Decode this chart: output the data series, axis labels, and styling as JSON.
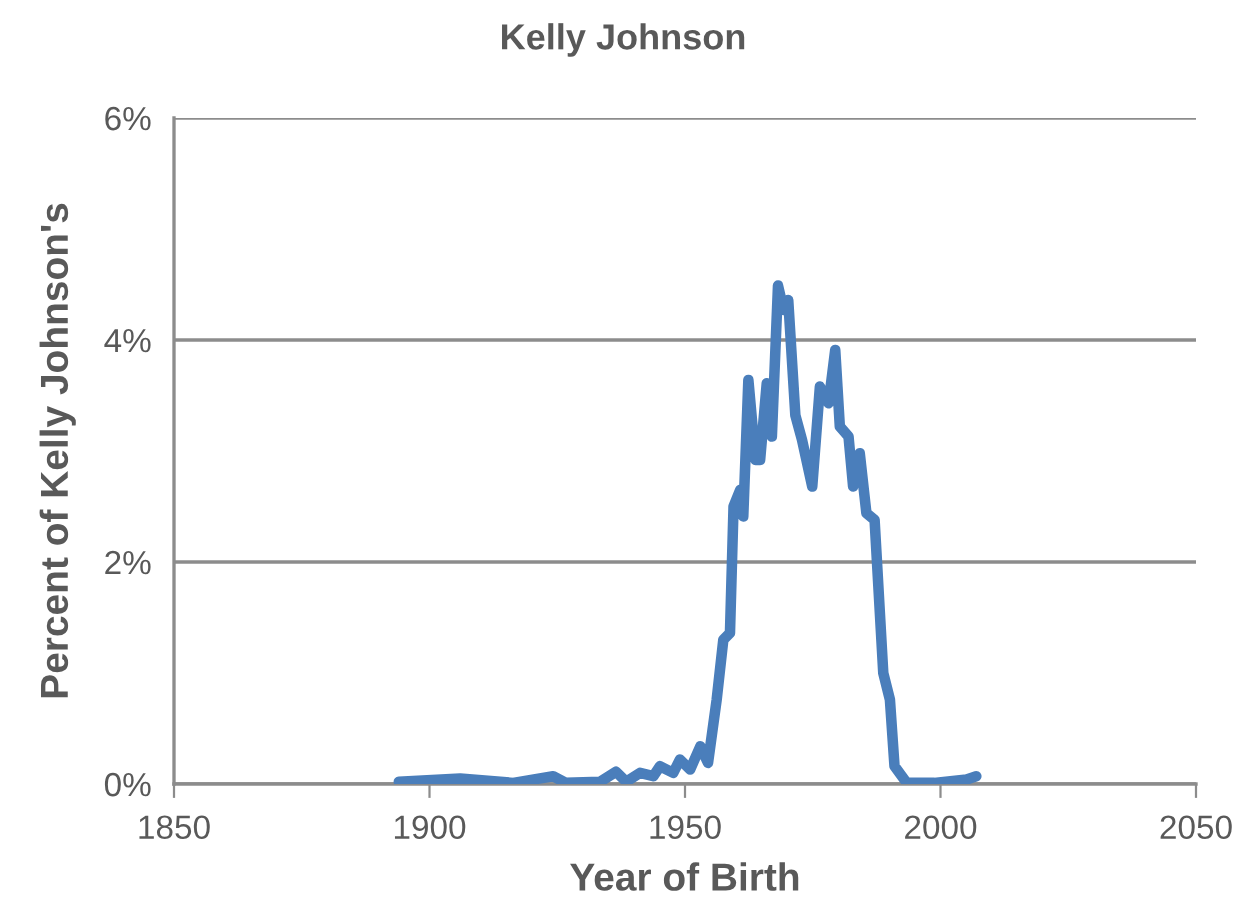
{
  "chart_data": {
    "type": "line",
    "title": "Kelly Johnson",
    "xlabel": "Year of Birth",
    "ylabel": "Percent of Kelly Johnson's",
    "xlim": [
      1850,
      2050
    ],
    "xticks": [
      1850,
      1900,
      1950,
      2000,
      2050
    ],
    "ylim": [
      0,
      6
    ],
    "yticks": [
      {
        "value": 0,
        "label": "0%"
      },
      {
        "value": 2,
        "label": "2%"
      },
      {
        "value": 4,
        "label": "4%"
      },
      {
        "value": 6,
        "label": "6%"
      }
    ],
    "grid": "y",
    "legend": false,
    "marker": "none",
    "line_style": "solid",
    "series": [
      {
        "color": "#4a7ebb",
        "x": [
          1894,
          1906,
          1916.4,
          1924.2,
          1926.7,
          1933.4,
          1936.5,
          1938.5,
          1941.2,
          1943.8,
          1945.1,
          1947.7,
          1949,
          1951,
          1953,
          1954.5,
          1956.2,
          1957.5,
          1958.8,
          1959.5,
          1960.8,
          1961.4,
          1962.4,
          1963.8,
          1964.7,
          1966,
          1967,
          1968.2,
          1969.3,
          1970.2,
          1971.6,
          1972.9,
          1974.9,
          1976.4,
          1978.1,
          1979.4,
          1980.3,
          1982,
          1982.9,
          1984.2,
          1985.5,
          1987.1,
          1988.8,
          1990.1,
          1991,
          1993.4,
          1998.8,
          2005.1,
          2007
        ],
        "values": [
          0.02,
          0.05,
          0.01,
          0.07,
          0.01,
          0.02,
          0.11,
          0.02,
          0.1,
          0.07,
          0.16,
          0.1,
          0.22,
          0.13,
          0.34,
          0.19,
          0.76,
          1.3,
          1.36,
          2.5,
          2.65,
          2.41,
          3.64,
          2.92,
          2.92,
          3.61,
          3.13,
          4.49,
          4.27,
          4.36,
          3.32,
          3.1,
          2.68,
          3.58,
          3.43,
          3.91,
          3.22,
          3.13,
          2.68,
          2.98,
          2.44,
          2.38,
          1.0,
          0.76,
          0.16,
          0.01,
          0.01,
          0.04,
          0.07
        ]
      }
    ]
  }
}
